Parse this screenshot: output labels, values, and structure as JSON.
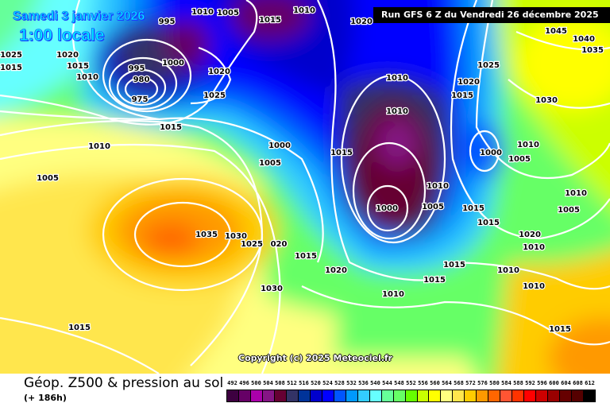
{
  "header": {
    "valid_date": "Samedi 3 janvier 2026",
    "local_time": "1:00 locale",
    "run_info": "Run GFS 6 Z du Vendredi 26 décembre 2025"
  },
  "map": {
    "copyright": "Copyright (c) 2025 Meteociel.fr",
    "pressure_labels": [
      "995",
      "1010",
      "1005",
      "1015",
      "1010",
      "1020",
      "1020",
      "1015",
      "1010",
      "1000",
      "995",
      "980",
      "1020",
      "1025",
      "975",
      "1015",
      "1010",
      "1005",
      "1000",
      "1005",
      "1015",
      "1010",
      "1010",
      "1020",
      "1015",
      "1025",
      "1030",
      "1000",
      "1010",
      "1005",
      "1010",
      "1000",
      "1005",
      "1015",
      "1015",
      "1035",
      "1030",
      "1025",
      "020",
      "1015",
      "1020",
      "1015",
      "1015",
      "1010",
      "1020",
      "1010",
      "1005",
      "1010",
      "1030",
      "1010",
      "1010",
      "1015",
      "1015",
      "1040",
      "1035",
      "1045",
      "1025",
      "1015"
    ]
  },
  "footer": {
    "title": "Géop. Z500 & pression au sol",
    "lead_time": "(+ 186h)"
  },
  "legend": {
    "labels": [
      "492",
      "496",
      "500",
      "504",
      "508",
      "512",
      "516",
      "520",
      "524",
      "528",
      "532",
      "536",
      "540",
      "544",
      "548",
      "552",
      "556",
      "560",
      "564",
      "568",
      "572",
      "576",
      "580",
      "584",
      "588",
      "592",
      "596",
      "600",
      "604",
      "608",
      "612"
    ],
    "colors": [
      "#3d0040",
      "#660066",
      "#aa00aa",
      "#851585",
      "#660033",
      "#333366",
      "#003399",
      "#0000cc",
      "#0000ff",
      "#0055ff",
      "#0099ff",
      "#33ccff",
      "#66ffff",
      "#66ff99",
      "#66ff66",
      "#66ff00",
      "#c8ff00",
      "#ffff00",
      "#ffff80",
      "#ffe64d",
      "#ffcc00",
      "#ff9900",
      "#ff6600",
      "#ff5533",
      "#ff3300",
      "#ff0000",
      "#cc0000",
      "#990000",
      "#660000",
      "#550000",
      "#000000"
    ]
  }
}
